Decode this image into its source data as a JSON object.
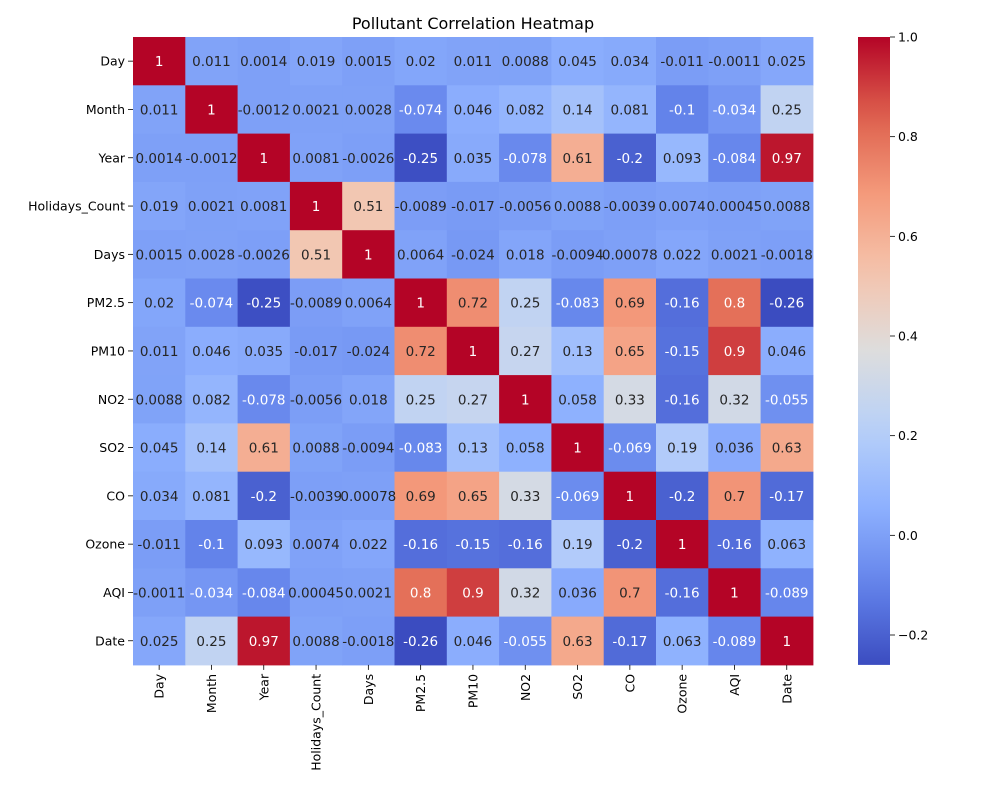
{
  "chart_data": {
    "type": "heatmap",
    "title": "Pollutant Correlation Heatmap",
    "labels": [
      "Day",
      "Month",
      "Year",
      "Holidays_Count",
      "Days",
      "PM2.5",
      "PM10",
      "NO2",
      "SO2",
      "CO",
      "Ozone",
      "AQI",
      "Date"
    ],
    "matrix": [
      [
        1,
        0.011,
        0.0014,
        0.019,
        0.0015,
        0.02,
        0.011,
        0.0088,
        0.045,
        0.034,
        -0.011,
        -0.0011,
        0.025
      ],
      [
        0.011,
        1,
        -0.0012,
        0.0021,
        0.0028,
        -0.074,
        0.046,
        0.082,
        0.14,
        0.081,
        -0.1,
        -0.034,
        0.25
      ],
      [
        0.0014,
        -0.0012,
        1,
        0.0081,
        -0.0026,
        -0.25,
        0.035,
        -0.078,
        0.61,
        -0.2,
        0.093,
        -0.084,
        0.97
      ],
      [
        0.019,
        0.0021,
        0.0081,
        1,
        0.51,
        -0.0089,
        -0.017,
        -0.0056,
        0.0088,
        -0.0039,
        0.0074,
        0.00045,
        0.0088
      ],
      [
        0.0015,
        0.0028,
        -0.0026,
        0.51,
        1,
        0.0064,
        -0.024,
        0.018,
        -0.0094,
        0.00078,
        0.022,
        0.0021,
        -0.0018
      ],
      [
        0.02,
        -0.074,
        -0.25,
        -0.0089,
        0.0064,
        1,
        0.72,
        0.25,
        -0.083,
        0.69,
        -0.16,
        0.8,
        -0.26
      ],
      [
        0.011,
        0.046,
        0.035,
        -0.017,
        -0.024,
        0.72,
        1,
        0.27,
        0.13,
        0.65,
        -0.15,
        0.9,
        0.046
      ],
      [
        0.0088,
        0.082,
        -0.078,
        -0.0056,
        0.018,
        0.25,
        0.27,
        1,
        0.058,
        0.33,
        -0.16,
        0.32,
        -0.055
      ],
      [
        0.045,
        0.14,
        0.61,
        0.0088,
        -0.0094,
        -0.083,
        0.13,
        0.058,
        1,
        -0.069,
        0.19,
        0.036,
        0.63
      ],
      [
        0.034,
        0.081,
        -0.2,
        -0.0039,
        0.00078,
        0.69,
        0.65,
        0.33,
        -0.069,
        1,
        -0.2,
        0.7,
        -0.17
      ],
      [
        -0.011,
        -0.1,
        0.093,
        0.0074,
        0.022,
        -0.16,
        -0.15,
        -0.16,
        0.19,
        -0.2,
        1,
        -0.16,
        0.063
      ],
      [
        -0.0011,
        -0.034,
        -0.084,
        0.00045,
        0.0021,
        0.8,
        0.9,
        0.32,
        0.036,
        0.7,
        -0.16,
        1,
        -0.089
      ],
      [
        0.025,
        0.25,
        0.97,
        0.0088,
        -0.0018,
        -0.26,
        0.046,
        -0.055,
        0.63,
        -0.17,
        0.063,
        -0.089,
        1
      ]
    ],
    "colormap": "coolwarm",
    "vmin": -0.26,
    "vmax": 1.0,
    "colorbar_ticks": [
      -0.2,
      0.0,
      0.2,
      0.4,
      0.6,
      0.8,
      1.0
    ],
    "colorbar_tick_labels": [
      "−0.2",
      "0.0",
      "0.2",
      "0.4",
      "0.6",
      "0.8",
      "1.0"
    ]
  }
}
